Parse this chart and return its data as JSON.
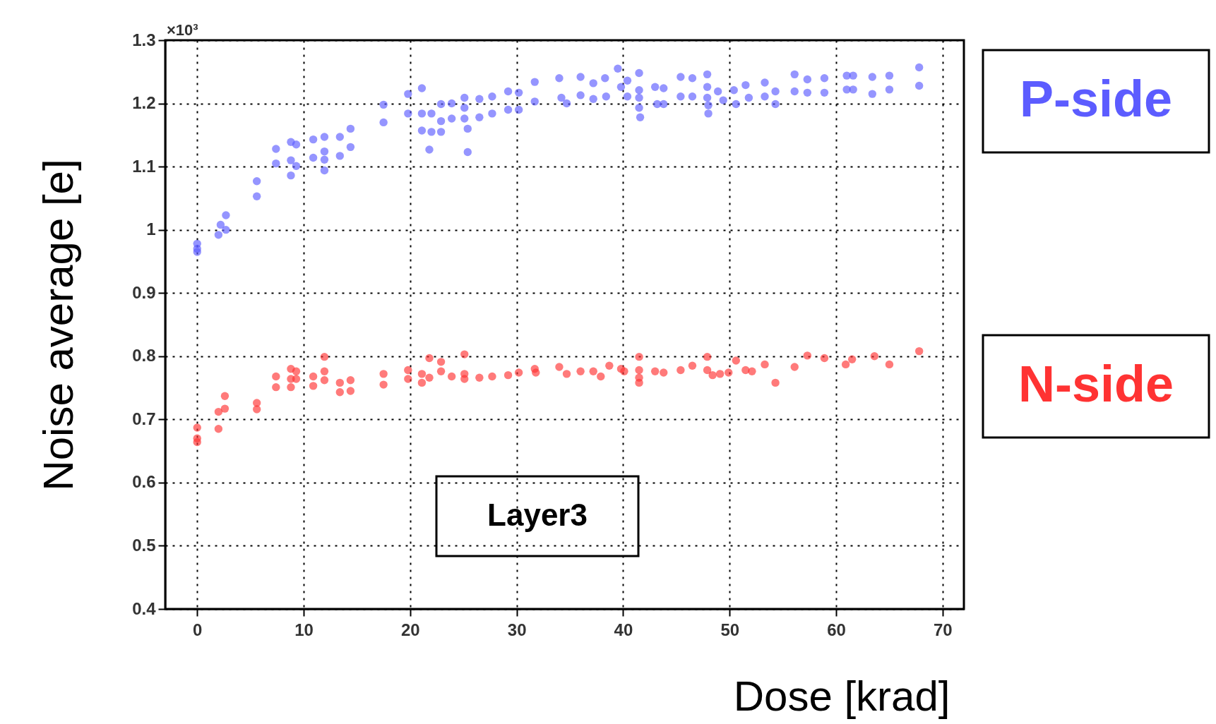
{
  "chart_data": {
    "type": "scatter",
    "xlabel": "Dose [krad]",
    "ylabel": "Noise average [e]",
    "xlim": [
      -3,
      72
    ],
    "xticks": [
      0,
      10,
      20,
      30,
      40,
      50,
      60,
      70
    ],
    "ylim": [
      0.4,
      1.3
    ],
    "yticks": [
      0.4,
      0.5,
      0.6,
      0.7,
      0.8,
      0.9,
      {
        "value": 1,
        "label": "1"
      },
      1.1,
      1.2,
      1.3
    ],
    "grid": true,
    "marker": "circle",
    "legend": "right",
    "annotations": [
      "Layer3",
      "×10³"
    ],
    "series": [
      {
        "name": "P-side",
        "color": "#5c5cff",
        "x": [
          0,
          0,
          0,
          2,
          2.2,
          2.7,
          2.7,
          5.6,
          5.6,
          7.4,
          7.4,
          8.8,
          9.3,
          8.8,
          9.3,
          8.8,
          10.9,
          10.9,
          11.95,
          11.95,
          11.95,
          11.95,
          13.4,
          13.4,
          14.4,
          14.4,
          17.5,
          17.5,
          19.8,
          19.8,
          21.1,
          21.1,
          21.1,
          21.8,
          22,
          22,
          22.9,
          22.9,
          22.9,
          23.9,
          23.9,
          25.1,
          25.1,
          25.1,
          25.4,
          25.4,
          26.5,
          26.5,
          27.7,
          27.7,
          29.2,
          29.2,
          30.2,
          30.2,
          31.7,
          31.7,
          34,
          34.2,
          34.7,
          36,
          36,
          37.2,
          37.2,
          38.3,
          38.4,
          39.5,
          39.8,
          40.4,
          40.4,
          41.5,
          41.5,
          41.5,
          41.5,
          41.6,
          43,
          43.2,
          43.8,
          43.8,
          45.4,
          45.4,
          46.5,
          46.5,
          47.9,
          47.9,
          47.9,
          48,
          48,
          48.9,
          49.4,
          50.4,
          50.6,
          51.5,
          51.8,
          53.3,
          53.3,
          54.3,
          54.3,
          56.1,
          56.1,
          57.3,
          57.3,
          58.9,
          58.9,
          61,
          61.6,
          61,
          61.6,
          63.4,
          63.4,
          65,
          65,
          67.8,
          67.8
        ],
        "values": [
          0.978,
          0.97,
          0.965,
          0.992,
          1.008,
          1.023,
          1.0,
          1.077,
          1.053,
          1.128,
          1.105,
          1.139,
          1.135,
          1.11,
          1.101,
          1.086,
          1.143,
          1.114,
          1.147,
          1.124,
          1.111,
          1.094,
          1.147,
          1.117,
          1.16,
          1.131,
          1.198,
          1.17,
          1.215,
          1.184,
          1.224,
          1.184,
          1.157,
          1.127,
          1.184,
          1.155,
          1.199,
          1.172,
          1.155,
          1.2,
          1.176,
          1.209,
          1.193,
          1.176,
          1.16,
          1.123,
          1.207,
          1.178,
          1.211,
          1.184,
          1.219,
          1.19,
          1.217,
          1.19,
          1.234,
          1.203,
          1.24,
          1.209,
          1.2,
          1.242,
          1.213,
          1.232,
          1.207,
          1.24,
          1.211,
          1.255,
          1.226,
          1.236,
          1.211,
          1.248,
          1.221,
          1.209,
          1.193,
          1.178,
          1.226,
          1.199,
          1.224,
          1.199,
          1.242,
          1.211,
          1.24,
          1.211,
          1.246,
          1.226,
          1.209,
          1.197,
          1.184,
          1.219,
          1.205,
          1.221,
          1.199,
          1.229,
          1.209,
          1.233,
          1.211,
          1.219,
          1.199,
          1.246,
          1.219,
          1.238,
          1.217,
          1.24,
          1.217,
          1.244,
          1.244,
          1.222,
          1.222,
          1.242,
          1.215,
          1.244,
          1.222,
          1.257,
          1.228
        ]
      },
      {
        "name": "N-side",
        "color": "#ff3333",
        "x": [
          0,
          0,
          0,
          2,
          2,
          2.6,
          2.6,
          5.6,
          5.6,
          7.4,
          7.4,
          8.8,
          9.3,
          8.8,
          8.8,
          9.3,
          10.9,
          10.9,
          11.95,
          11.95,
          11.95,
          13.4,
          13.4,
          14.4,
          14.4,
          17.5,
          17.5,
          19.8,
          19.8,
          21.1,
          21.1,
          21.8,
          21.8,
          22.9,
          22.9,
          23.9,
          25.1,
          25.1,
          25.1,
          26.5,
          27.7,
          29.2,
          30.2,
          31.7,
          31.8,
          34,
          34.7,
          36,
          37.2,
          37.9,
          38.7,
          39.8,
          40.1,
          41.5,
          41.5,
          41.5,
          41.5,
          43,
          43.8,
          45.4,
          46.5,
          47.9,
          47.9,
          48.4,
          49.1,
          49.9,
          50.6,
          51.5,
          52.1,
          53.3,
          54.3,
          56.1,
          57.3,
          58.9,
          60.9,
          61.5,
          63.6,
          65,
          67.8
        ],
        "values": [
          0.687,
          0.664,
          0.67,
          0.685,
          0.712,
          0.717,
          0.737,
          0.726,
          0.716,
          0.768,
          0.751,
          0.78,
          0.776,
          0.764,
          0.751,
          0.764,
          0.768,
          0.753,
          0.799,
          0.776,
          0.762,
          0.758,
          0.743,
          0.762,
          0.745,
          0.772,
          0.755,
          0.778,
          0.764,
          0.772,
          0.758,
          0.797,
          0.766,
          0.791,
          0.776,
          0.768,
          0.803,
          0.772,
          0.764,
          0.766,
          0.768,
          0.77,
          0.774,
          0.78,
          0.774,
          0.783,
          0.772,
          0.776,
          0.776,
          0.768,
          0.785,
          0.78,
          0.776,
          0.799,
          0.778,
          0.766,
          0.758,
          0.776,
          0.774,
          0.778,
          0.785,
          0.799,
          0.778,
          0.77,
          0.772,
          0.774,
          0.793,
          0.778,
          0.776,
          0.787,
          0.758,
          0.783,
          0.801,
          0.797,
          0.787,
          0.795,
          0.8,
          0.787,
          0.808
        ]
      }
    ]
  }
}
